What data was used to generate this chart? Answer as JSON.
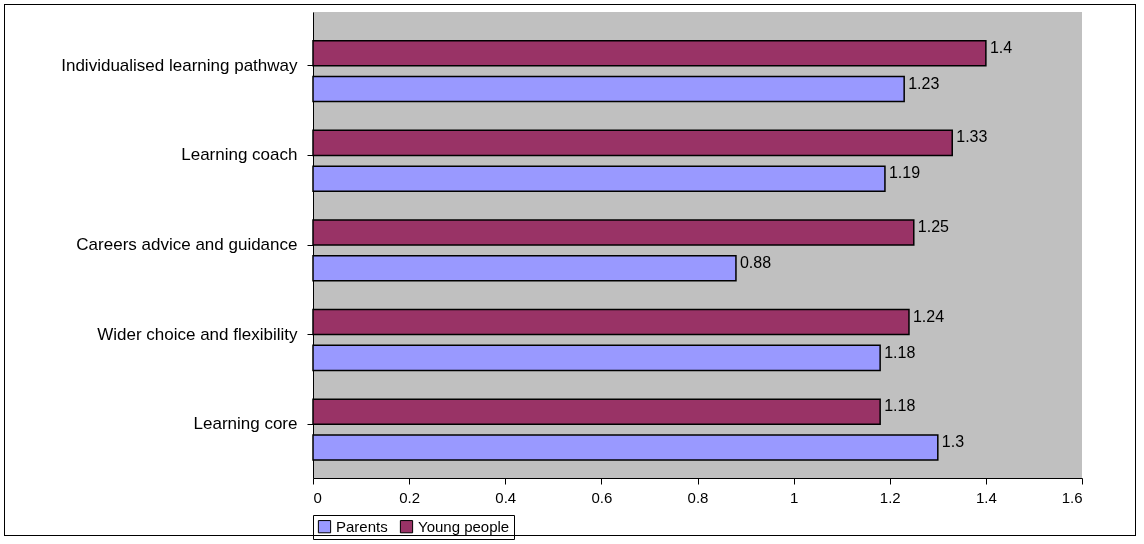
{
  "chart_data": {
    "type": "bar",
    "orientation": "horizontal",
    "categories": [
      "Individualised learning pathway",
      "Learning coach",
      "Careers advice and guidance",
      "Wider choice and flexibility",
      "Learning core"
    ],
    "series": [
      {
        "name": "Parents",
        "color": "#9999ff",
        "values": [
          1.23,
          1.19,
          0.88,
          1.18,
          1.3
        ]
      },
      {
        "name": "Young people",
        "color": "#993366",
        "values": [
          1.4,
          1.33,
          1.25,
          1.24,
          1.18
        ]
      }
    ],
    "xlim": [
      0,
      1.6
    ],
    "xticks": [
      0,
      0.2,
      0.4,
      0.6,
      0.8,
      1,
      1.2,
      1.4,
      1.6
    ],
    "grid": false,
    "legend": "bottom",
    "data_labels": true
  }
}
